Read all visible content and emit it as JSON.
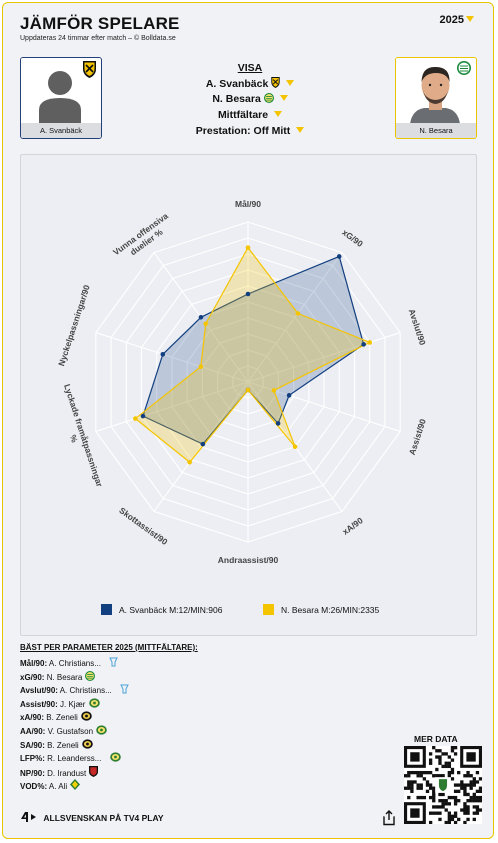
{
  "header": {
    "title": "JÄMFÖR SPELARE",
    "subtitle": "Uppdateras 24 timmar efter match – © Bolldata.se",
    "year": "2025"
  },
  "players": {
    "left": {
      "name": "A. Svanbäck",
      "color": "#123f80"
    },
    "right": {
      "name": "N. Besara",
      "color": "#f5c400"
    }
  },
  "selector": {
    "heading": "VISA",
    "player1": "A. Svanbäck",
    "player2": "N. Besara",
    "position": "Mittfältare",
    "performance": "Prestation: Off Mitt"
  },
  "chart_data": {
    "type": "radar",
    "axes": [
      "Mål/90",
      "xG/90",
      "Avslut/90",
      "Assist/90",
      "xA/90",
      "Andraassist/90",
      "Skottassist/90",
      "Lyckade framåtpassningar %",
      "Nyckelpassningar/90",
      "Vunna offensiva duelier %"
    ],
    "rings": 10,
    "series": [
      {
        "name": "A. Svanbäck M:12/MIN:906",
        "color": "#123f80",
        "values": [
          0.55,
          0.97,
          0.76,
          0.27,
          0.32,
          0.05,
          0.48,
          0.69,
          0.56,
          0.5
        ]
      },
      {
        "name": "N. Besara M:26/MIN:2335",
        "color": "#f5c400",
        "values": [
          0.84,
          0.53,
          0.8,
          0.17,
          0.5,
          0.05,
          0.62,
          0.74,
          0.31,
          0.45
        ]
      }
    ]
  },
  "best": {
    "title": "BÄST PER PARAMETER 2025 (MITTFÄLTARE):",
    "rows": [
      {
        "label": "Mål/90:",
        "value": "A. Christians...",
        "badge": "vase"
      },
      {
        "label": "xG/90:",
        "value": "N. Besara",
        "badge": "hammarby"
      },
      {
        "label": "Avslut/90:",
        "value": "A. Christians...",
        "badge": "vase"
      },
      {
        "label": "Assist/90:",
        "value": "J. Kjær",
        "badge": "green"
      },
      {
        "label": "xA/90:",
        "value": "B. Zeneli",
        "badge": "black"
      },
      {
        "label": "AA/90:",
        "value": "V. Gustafson",
        "badge": "green"
      },
      {
        "label": "SA/90:",
        "value": "B. Zeneli",
        "badge": "black"
      },
      {
        "label": "LFP%:",
        "value": "R. Leanderss...",
        "badge": "green"
      },
      {
        "label": "NP/90:",
        "value": "D. Irandust",
        "badge": "red"
      },
      {
        "label": "VOD%:",
        "value": "A. Ali",
        "badge": "yellowgreen"
      }
    ]
  },
  "more": {
    "label": "MER DATA"
  },
  "footer": {
    "label": "ALLSVENSKAN PÅ TV4 PLAY"
  },
  "icons": {
    "share": "share-icon",
    "tv4": "tv4-logo-icon",
    "qr": "qr-code-icon"
  }
}
